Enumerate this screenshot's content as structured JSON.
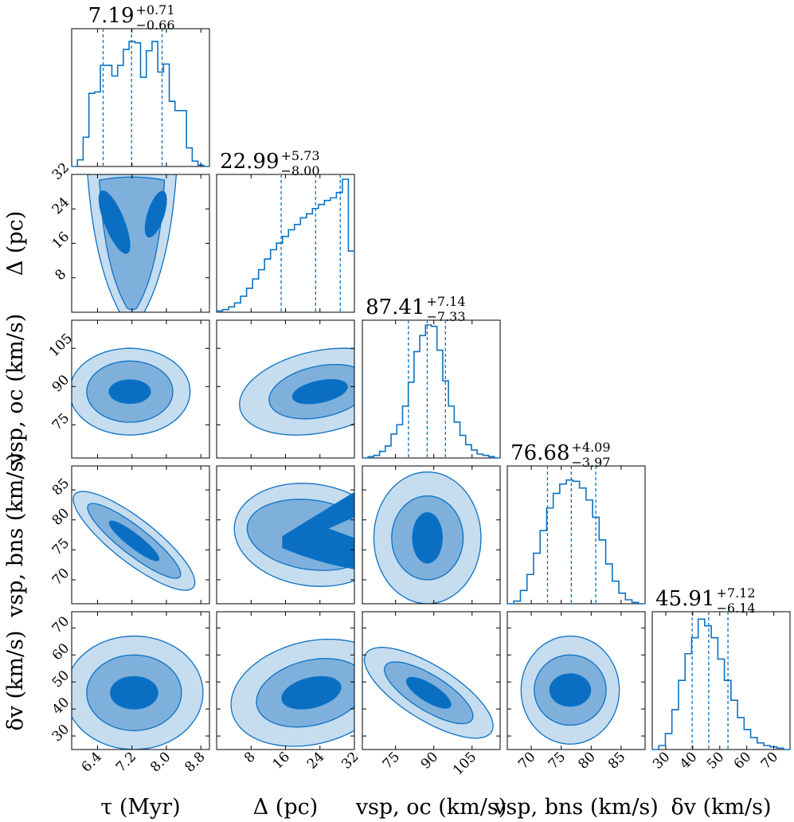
{
  "chart_data": {
    "type": "corner",
    "colors": {
      "line": "#0b72c4",
      "c1": "#c6dcef",
      "c2": "#7fb0dc",
      "c3": "#0a6fc3",
      "frame": "#000000"
    },
    "parameters": [
      {
        "key": "tau",
        "label": "τ (Myr)",
        "ylabel": "",
        "median": "7.19",
        "plus": "+0.71",
        "minus": "−0.66",
        "range": [
          5.8,
          9.0
        ],
        "ticks": [
          6.4,
          7.2,
          8.0,
          8.8
        ],
        "tick_labels": [
          "6.4",
          "7.2",
          "8.0",
          "8.8"
        ],
        "hist": [
          0,
          0.05,
          0.22,
          0.55,
          0.56,
          0.76,
          0.76,
          0.68,
          0.76,
          0.88,
          0.94,
          0.93,
          0.67,
          0.87,
          0.94,
          0.71,
          0.77,
          0.49,
          0.42,
          0.42,
          0.14,
          0.04,
          0.01,
          0.0
        ],
        "quantiles": [
          6.53,
          7.19,
          7.9
        ]
      },
      {
        "key": "delta",
        "label": "Δ (pc)",
        "ylabel": "Δ (pc)",
        "median": "22.99",
        "plus": "+5.73",
        "minus": "−8.00",
        "range": [
          0,
          32
        ],
        "ticks": [
          8,
          16,
          24,
          32
        ],
        "tick_labels": [
          "8",
          "16",
          "24",
          "32"
        ],
        "hist": [
          0.01,
          0.02,
          0.04,
          0.07,
          0.12,
          0.18,
          0.25,
          0.32,
          0.4,
          0.47,
          0.52,
          0.57,
          0.62,
          0.66,
          0.71,
          0.74,
          0.78,
          0.81,
          0.84,
          0.86,
          0.9,
          1.0,
          0.46
        ],
        "quantiles": [
          14.99,
          22.99,
          28.72
        ]
      },
      {
        "key": "vsp_oc",
        "label": "vsp, oc (km/s)",
        "ylabel": "vsp, oc (km/s)",
        "median": "87.41",
        "plus": "+7.14",
        "minus": "−7.33",
        "range": [
          62,
          116
        ],
        "ticks": [
          75,
          90,
          105
        ],
        "tick_labels": [
          "75",
          "90",
          "105"
        ],
        "hist": [
          0,
          0.01,
          0.02,
          0.05,
          0.09,
          0.18,
          0.25,
          0.39,
          0.57,
          0.8,
          0.92,
          1.0,
          0.99,
          0.81,
          0.58,
          0.39,
          0.27,
          0.17,
          0.1,
          0.06,
          0.03,
          0.02,
          0.01,
          0.0
        ],
        "quantiles": [
          80.08,
          87.41,
          94.55
        ]
      },
      {
        "key": "vsp_bns",
        "label": "vsp, bns (km/s)",
        "ylabel": "vsp, bns (km/s)",
        "median": "76.68",
        "plus": "+4.09",
        "minus": "−3.97",
        "range": [
          66,
          89
        ],
        "ticks": [
          70,
          75,
          80,
          85
        ],
        "tick_labels": [
          "70",
          "75",
          "80",
          "85"
        ],
        "hist": [
          0,
          0.02,
          0.1,
          0.22,
          0.38,
          0.55,
          0.72,
          0.83,
          0.9,
          0.93,
          0.92,
          0.87,
          0.78,
          0.65,
          0.48,
          0.3,
          0.17,
          0.08,
          0.03,
          0.01,
          0.0
        ],
        "quantiles": [
          72.71,
          76.68,
          80.77
        ]
      },
      {
        "key": "dv",
        "label": "δv (km/s)",
        "ylabel": "δv (km/s)",
        "median": "45.91",
        "plus": "+7.12",
        "minus": "−6.14",
        "range": [
          25,
          76
        ],
        "ticks": [
          30,
          40,
          50,
          60,
          70
        ],
        "tick_labels": [
          "30",
          "40",
          "50",
          "60",
          "70"
        ],
        "hist": [
          0,
          0.03,
          0.12,
          0.3,
          0.52,
          0.72,
          0.84,
          0.98,
          0.93,
          0.84,
          0.68,
          0.52,
          0.37,
          0.24,
          0.15,
          0.09,
          0.05,
          0.03,
          0.02,
          0.01,
          0.0
        ],
        "quantiles": [
          39.77,
          45.91,
          53.03
        ]
      }
    ],
    "contours": [
      {
        "row": 1,
        "col": 0,
        "cx": 7.2,
        "cy": 15,
        "a": [
          1.0,
          0.72,
          0.38
        ],
        "b": [
          21,
          16.5,
          9
        ],
        "rot": 0,
        "shape": "tri",
        "lobes": true
      },
      {
        "row": 2,
        "col": 0,
        "cx": 7.15,
        "cy": 88,
        "a": [
          1.4,
          1.0,
          0.48
        ],
        "b": [
          17,
          12,
          4.6
        ],
        "rot": 0
      },
      {
        "row": 2,
        "col": 1,
        "cx": 24,
        "cy": 88,
        "a": [
          19,
          12,
          6.5
        ],
        "b": [
          16,
          10,
          4.2
        ],
        "rot": -12
      },
      {
        "row": 3,
        "col": 0,
        "cx": 7.25,
        "cy": 76.5,
        "a": [
          1.75,
          1.35,
          0.72
        ],
        "b": [
          3.6,
          2.3,
          1.1
        ],
        "rot": 38
      },
      {
        "row": 3,
        "col": 1,
        "cx": 22,
        "cy": 77.5,
        "a": [
          18,
          15,
          9.5
        ],
        "b": [
          8.5,
          5.8,
          3.2
        ],
        "rot": 8,
        "lobes2": true
      },
      {
        "row": 3,
        "col": 2,
        "cx": 87.5,
        "cy": 77,
        "a": [
          21,
          14,
          5.8
        ],
        "b": [
          11,
          7,
          4.2
        ],
        "rot": 0
      },
      {
        "row": 4,
        "col": 0,
        "cx": 7.25,
        "cy": 46,
        "a": [
          1.6,
          1.1,
          0.55
        ],
        "b": [
          21,
          14,
          6
        ],
        "rot": 0
      },
      {
        "row": 4,
        "col": 1,
        "cx": 22,
        "cy": 46,
        "a": [
          19,
          13,
          7
        ],
        "b": [
          19,
          12,
          5.5
        ],
        "rot": -14
      },
      {
        "row": 4,
        "col": 2,
        "cx": 88,
        "cy": 46,
        "a": [
          29,
          20,
          10
        ],
        "b": [
          10,
          6.5,
          3.2
        ],
        "rot": 32
      },
      {
        "row": 4,
        "col": 3,
        "cx": 76.5,
        "cy": 47,
        "a": [
          8.2,
          6,
          3.4
        ],
        "b": [
          20,
          13,
          6
        ],
        "rot": 0
      }
    ]
  }
}
